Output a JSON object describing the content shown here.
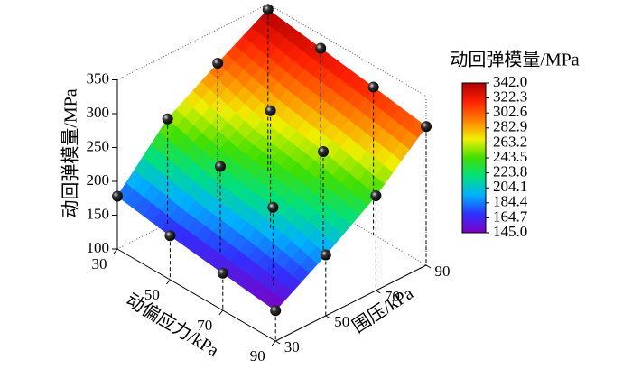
{
  "chart_data": {
    "type": "surface3d",
    "x_label": "动偏应力/kPa",
    "y_label": "围压/kPa",
    "z_label": "动回弹模量/MPa",
    "x": [
      30,
      50,
      70,
      90
    ],
    "y": [
      30,
      50,
      70,
      90
    ],
    "z": [
      [
        178,
        255,
        300,
        342
      ],
      [
        165,
        230,
        275,
        330
      ],
      [
        155,
        215,
        260,
        318
      ],
      [
        145,
        190,
        240,
        305
      ]
    ],
    "xlim": [
      30,
      90
    ],
    "ylim": [
      30,
      90
    ],
    "zlim": [
      100,
      350
    ],
    "xticks": [
      30,
      50,
      70,
      90
    ],
    "yticks": [
      30,
      50,
      70,
      90
    ],
    "zticks": [
      100,
      150,
      200,
      250,
      300,
      350
    ],
    "colorbar_title": "动回弹模量/MPa",
    "clim": [
      145,
      342
    ],
    "colorbar_ticks": [
      {
        "value": 342,
        "label": "342.0"
      },
      {
        "value": 322.3,
        "label": "322.3"
      },
      {
        "value": 302.6,
        "label": "302.6"
      },
      {
        "value": 282.9,
        "label": "282.9"
      },
      {
        "value": 263.2,
        "label": "263.2"
      },
      {
        "value": 243.5,
        "label": "243.5"
      },
      {
        "value": 223.8,
        "label": "223.8"
      },
      {
        "value": 204.1,
        "label": "204.1"
      },
      {
        "value": 184.4,
        "label": "184.4"
      },
      {
        "value": 164.7,
        "label": "164.7"
      },
      {
        "value": 145,
        "label": "145.0"
      }
    ],
    "colorscale": [
      "#8000c0",
      "#3030ff",
      "#00b0ff",
      "#00e080",
      "#40e000",
      "#f0f000",
      "#ff8000",
      "#ff2000",
      "#b00000"
    ]
  }
}
